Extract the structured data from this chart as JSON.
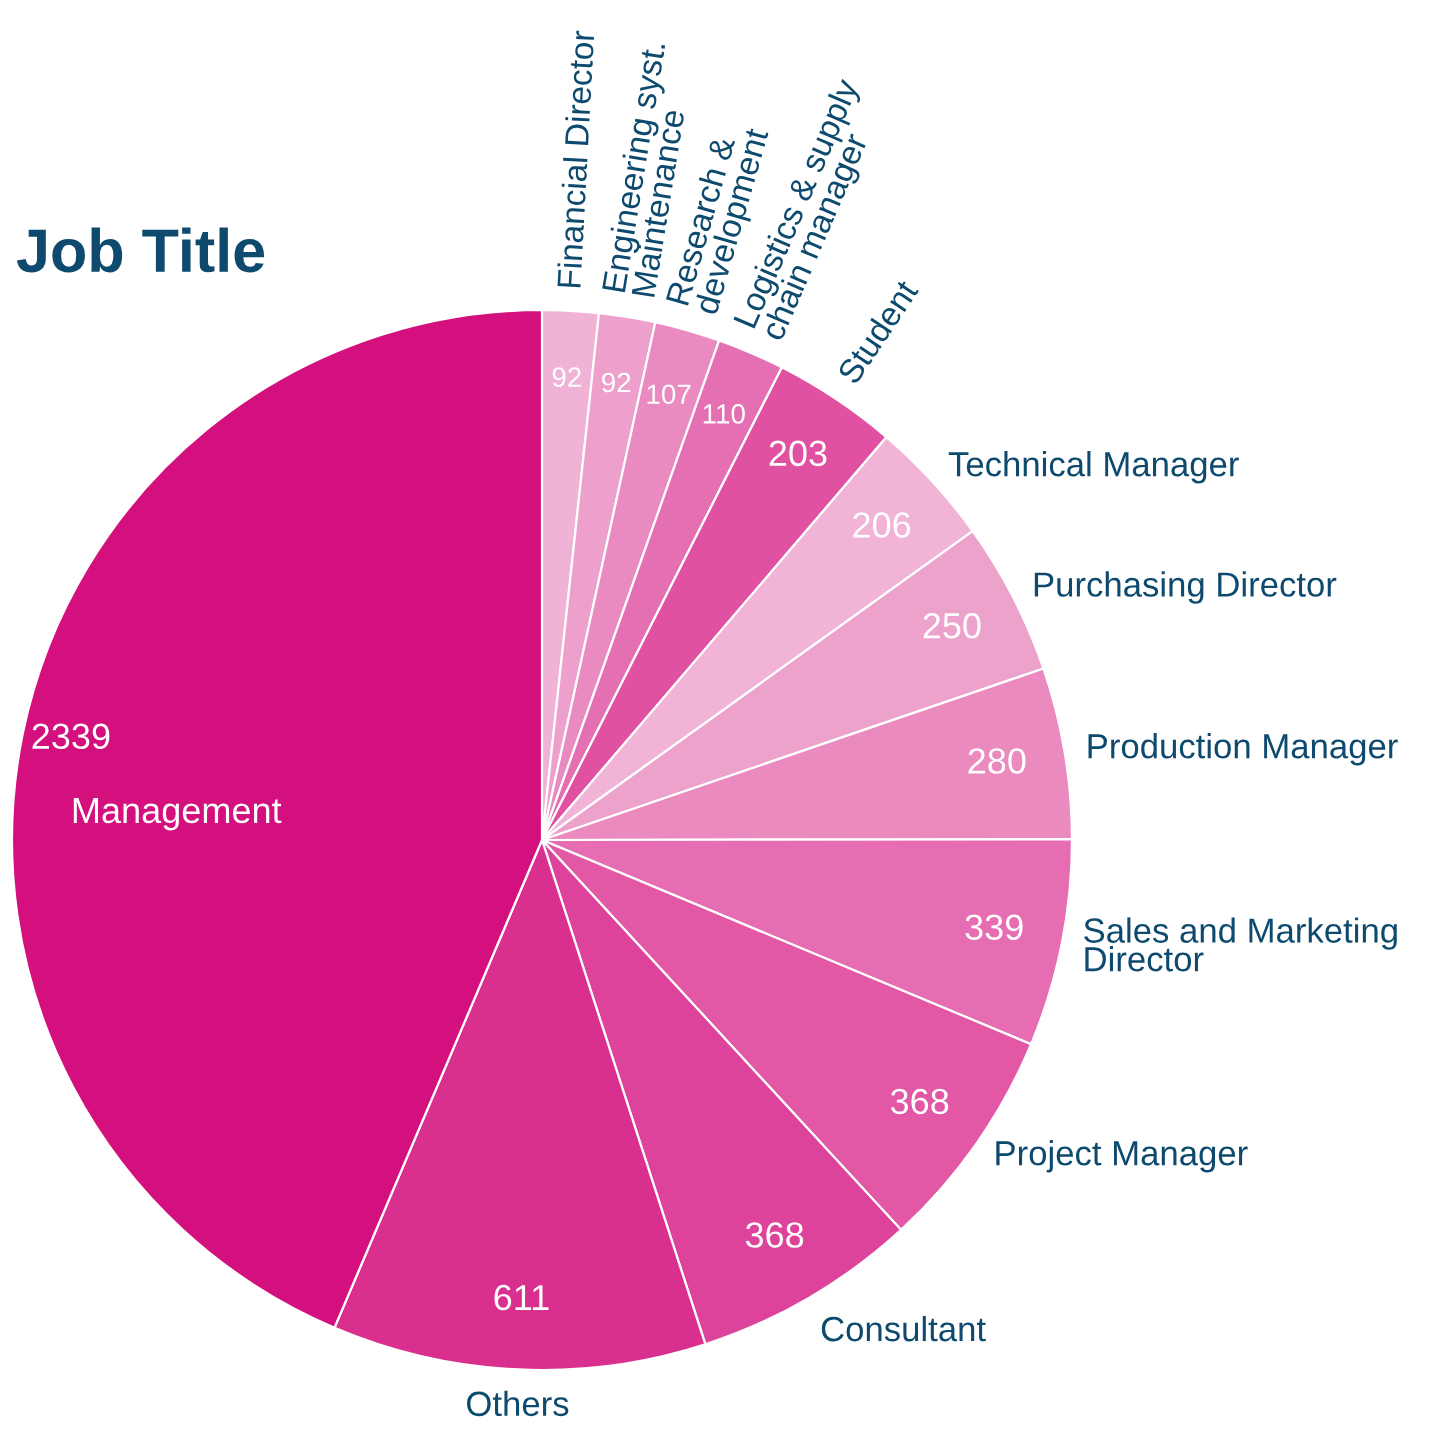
{
  "chart_data": {
    "type": "pie",
    "title": "Job Title",
    "categories": [
      "Financial Director",
      "Engineering syst.\nMaintenance",
      "Research &\ndevelopment",
      "Logistics & supply\nchain manager",
      "Student",
      "Technical Manager",
      "Purchasing Director",
      "Production Manager",
      "Sales and Marketing\nDirector",
      "Project Manager",
      "Consultant",
      "Others",
      "Management"
    ],
    "values": [
      92,
      92,
      107,
      110,
      203,
      206,
      250,
      280,
      339,
      368,
      368,
      611,
      2339
    ],
    "colors": [
      "#f0b3d6",
      "#eca0cb",
      "#e98ac0",
      "#e46fb2",
      "#e052a1",
      "#f1b4d7",
      "#eda2cb",
      "#ea8abf",
      "#e66db1",
      "#e258a5",
      "#dd439a",
      "#d9308f",
      "#d4107e"
    ],
    "data_labels": true,
    "legend": false
  }
}
